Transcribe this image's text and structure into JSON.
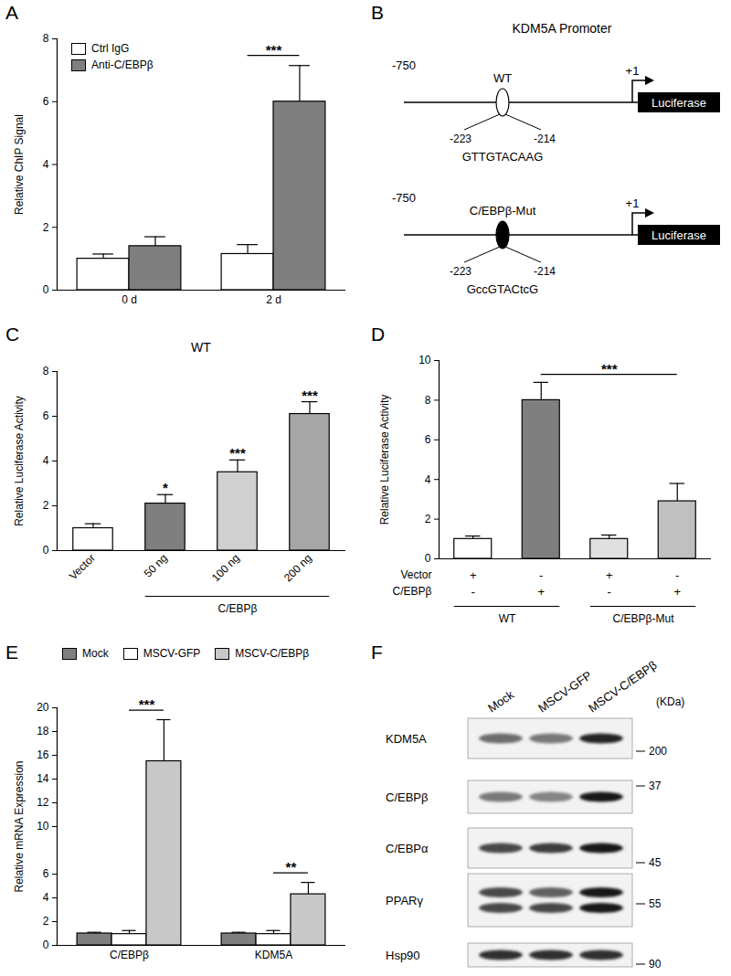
{
  "chart_data": [
    {
      "panel": "A",
      "type": "bar",
      "categories": [
        "0 d",
        "2 d"
      ],
      "series": [
        {
          "name": "Ctrl IgG",
          "color": "#ffffff",
          "values": [
            1.0,
            1.15
          ],
          "errors": [
            0.15,
            0.3
          ]
        },
        {
          "name": "Anti-C/EBPβ",
          "color": "#7f7f7f",
          "values": [
            1.4,
            6.0
          ],
          "errors": [
            0.3,
            1.15
          ]
        }
      ],
      "y_label": "Relative ChIP Signal",
      "ylim": [
        0,
        8
      ],
      "yticks": [
        0,
        2,
        4,
        6,
        8
      ],
      "legend": "top-left",
      "annotations": [
        {
          "text": "***",
          "category": "2 d",
          "between": [
            "Ctrl IgG",
            "Anti-C/EBPβ"
          ]
        }
      ]
    },
    {
      "panel": "C",
      "type": "bar",
      "title": "WT",
      "categories": [
        "Vector",
        "50 ng",
        "100 ng",
        "200 ng"
      ],
      "values": [
        1.0,
        2.1,
        3.5,
        6.1
      ],
      "errors": [
        0.2,
        0.4,
        0.55,
        0.55
      ],
      "colors": [
        "#ffffff",
        "#7f7f7f",
        "#d0d0d0",
        "#a6a6a6"
      ],
      "groups": [
        null,
        "C/EBPβ",
        "C/EBPβ",
        "C/EBPβ"
      ],
      "y_label": "Relative Luciferase Activity",
      "ylim": [
        0,
        8
      ],
      "yticks": [
        0,
        2,
        4,
        6,
        8
      ],
      "annotations": [
        {
          "text": "*",
          "category": "50 ng"
        },
        {
          "text": "***",
          "category": "100 ng"
        },
        {
          "text": "***",
          "category": "200 ng"
        }
      ]
    },
    {
      "panel": "D",
      "type": "bar",
      "categories": [
        null,
        null,
        null,
        null
      ],
      "values": [
        1.0,
        8.0,
        1.0,
        2.9
      ],
      "errors": [
        0.15,
        0.9,
        0.2,
        0.9
      ],
      "colors": [
        "#ffffff",
        "#7f7f7f",
        "#e0e0e0",
        "#c0c0c0"
      ],
      "design": [
        {
          "label": "Vector",
          "marks": [
            "+",
            "-",
            "+",
            "-"
          ]
        },
        {
          "label": "C/EBPβ",
          "marks": [
            "-",
            "+",
            "-",
            "+"
          ]
        }
      ],
      "groups": [
        "WT",
        "WT",
        "C/EBPβ-Mut",
        "C/EBPβ-Mut"
      ],
      "y_label": "Relative Luciferase Activity",
      "ylim": [
        0,
        10
      ],
      "yticks": [
        0,
        2,
        4,
        6,
        8,
        10
      ],
      "annotations": [
        {
          "text": "***",
          "between": [
            1,
            3
          ]
        }
      ]
    },
    {
      "panel": "E",
      "type": "bar",
      "categories": [
        "C/EBPβ",
        "KDM5A"
      ],
      "series": [
        {
          "name": "Mock",
          "color": "#7f7f7f",
          "values": [
            1.0,
            1.0
          ],
          "errors": [
            0.1,
            0.1
          ]
        },
        {
          "name": "MSCV-GFP",
          "color": "#ffffff",
          "values": [
            0.95,
            0.95
          ],
          "errors": [
            0.3,
            0.3
          ]
        },
        {
          "name": "MSCV-C/EBPβ",
          "color": "#c8c8c8",
          "values": [
            15.5,
            4.3
          ],
          "errors": [
            3.5,
            1.0
          ]
        }
      ],
      "y_label": "Relative mRNA Expression",
      "ylim": [
        0,
        20
      ],
      "yticks": [
        0,
        2,
        4,
        6,
        10,
        12,
        14,
        16,
        18,
        20
      ],
      "legend": "top",
      "annotations": [
        {
          "text": "***",
          "category": "C/EBPβ",
          "between": [
            "MSCV-GFP",
            "MSCV-C/EBPβ"
          ]
        },
        {
          "text": "**",
          "category": "KDM5A",
          "between": [
            "MSCV-GFP",
            "MSCV-C/EBPβ"
          ]
        }
      ]
    }
  ],
  "diagram": {
    "panel": "B",
    "title": "KDM5A Promoter",
    "constructs": [
      {
        "name": "WT",
        "start": "-750",
        "tss": "+1",
        "site_start": "-223",
        "site_end": "-214",
        "sequence": "GTTGTACAAG",
        "reporter": "Luciferase",
        "site_filled": false
      },
      {
        "name": "C/EBPβ-Mut",
        "start": "-750",
        "tss": "+1",
        "site_start": "-223",
        "site_end": "-214",
        "sequence": "GccGTACtcG",
        "reporter": "Luciferase",
        "site_filled": true
      }
    ]
  },
  "blot": {
    "panel": "F",
    "lanes": [
      "Mock",
      "MSCV-GFP",
      "MSCV-C/EBPβ"
    ],
    "unit": "(KDa)",
    "rows": [
      {
        "protein": "KDM5A",
        "marker": 200,
        "intensity": [
          [
            0.55
          ],
          [
            0.5
          ],
          [
            0.85
          ]
        ]
      },
      {
        "protein": "C/EBPβ",
        "marker": 37,
        "intensity": [
          [
            0.5
          ],
          [
            0.45
          ],
          [
            0.9
          ]
        ]
      },
      {
        "protein": "C/EBPα",
        "marker": 45,
        "intensity": [
          [
            0.7
          ],
          [
            0.75
          ],
          [
            0.9
          ]
        ]
      },
      {
        "protein": "PPARγ",
        "marker": 55,
        "intensity": [
          [
            0.7,
            0.7
          ],
          [
            0.6,
            0.7
          ],
          [
            0.9,
            0.9
          ]
        ]
      },
      {
        "protein": "Hsp90",
        "marker": 90,
        "intensity": [
          [
            0.8
          ],
          [
            0.8
          ],
          [
            0.8
          ]
        ]
      }
    ]
  }
}
